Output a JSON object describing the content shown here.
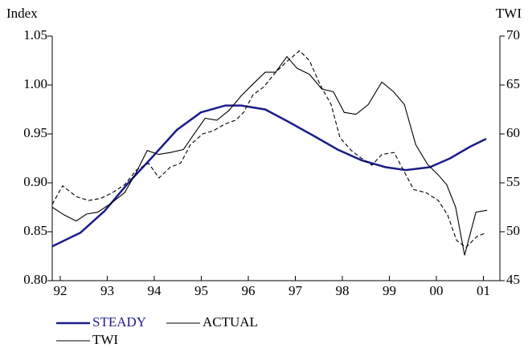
{
  "chart_data": {
    "type": "line",
    "y_label": "Index",
    "y2_label": "TWI",
    "xlim": [
      1991.83,
      2001.35
    ],
    "xticks": [
      {
        "value": 1992,
        "label": "92"
      },
      {
        "value": 1993,
        "label": "93"
      },
      {
        "value": 1994,
        "label": "94"
      },
      {
        "value": 1995,
        "label": "95"
      },
      {
        "value": 1996,
        "label": "96"
      },
      {
        "value": 1997,
        "label": "97"
      },
      {
        "value": 1998,
        "label": "98"
      },
      {
        "value": 1999,
        "label": "99"
      },
      {
        "value": 2000,
        "label": "00"
      },
      {
        "value": 2001,
        "label": "01"
      }
    ],
    "ylim": [
      0.8,
      1.05
    ],
    "yticks": [
      {
        "value": 0.8,
        "label": "0.80"
      },
      {
        "value": 0.85,
        "label": "0.85"
      },
      {
        "value": 0.9,
        "label": "0.90"
      },
      {
        "value": 0.95,
        "label": "0.95"
      },
      {
        "value": 1.0,
        "label": "1.00"
      },
      {
        "value": 1.05,
        "label": "1.05"
      }
    ],
    "y2lim": [
      45,
      70
    ],
    "y2ticks": [
      45,
      50,
      55,
      60,
      65,
      70
    ],
    "series": [
      {
        "name": "STEADY",
        "color": "#1c1c8c",
        "dash": false,
        "x": [
          1991.83,
          1992.43,
          1992.94,
          1993.45,
          1993.97,
          1994.48,
          1994.99,
          1995.51,
          1995.85,
          1996.36,
          1996.87,
          1997.39,
          1997.9,
          1998.41,
          1998.92,
          1999.35,
          1999.86,
          2000.29,
          2000.72,
          2001.06
        ],
        "values": [
          0.835,
          0.849,
          0.871,
          0.9,
          0.927,
          0.954,
          0.972,
          0.979,
          0.979,
          0.975,
          0.962,
          0.948,
          0.934,
          0.923,
          0.916,
          0.913,
          0.916,
          0.925,
          0.937,
          0.945
        ]
      },
      {
        "name": "ACTUAL",
        "color": "#000000",
        "dash": true,
        "x": [
          1991.83,
          1992.05,
          1992.34,
          1992.6,
          1992.86,
          1993.11,
          1993.37,
          1993.62,
          1993.88,
          1994.1,
          1994.34,
          1994.56,
          1994.77,
          1995.03,
          1995.25,
          1995.5,
          1995.73,
          1995.9,
          1996.1,
          1996.33,
          1996.58,
          1996.82,
          1997.09,
          1997.3,
          1997.52,
          1997.76,
          1997.95,
          1998.19,
          1998.41,
          1998.63,
          1998.84,
          1999.1,
          1999.32,
          1999.52,
          1999.78,
          2000.04,
          2000.24,
          2000.43,
          2000.63,
          2000.86,
          2001.06
        ],
        "values": [
          0.878,
          0.897,
          0.886,
          0.882,
          0.884,
          0.89,
          0.898,
          0.913,
          0.92,
          0.905,
          0.916,
          0.92,
          0.939,
          0.95,
          0.953,
          0.96,
          0.964,
          0.972,
          0.99,
          0.998,
          1.013,
          1.024,
          1.035,
          1.025,
          1.001,
          0.98,
          0.946,
          0.933,
          0.925,
          0.918,
          0.929,
          0.931,
          0.911,
          0.893,
          0.89,
          0.882,
          0.867,
          0.841,
          0.834,
          0.845,
          0.849
        ]
      },
      {
        "name": "TWI",
        "color": "#000000",
        "dash": false,
        "axis": "y2",
        "x": [
          1991.83,
          1992.09,
          1992.34,
          1992.56,
          1992.8,
          1993.08,
          1993.37,
          1993.62,
          1993.85,
          1994.09,
          1994.34,
          1994.62,
          1994.82,
          1995.08,
          1995.33,
          1995.59,
          1995.85,
          1996.1,
          1996.36,
          1996.58,
          1996.82,
          1997.04,
          1997.3,
          1997.56,
          1997.81,
          1998.04,
          1998.29,
          1998.55,
          1998.84,
          1999.09,
          1999.32,
          1999.56,
          1999.81,
          2000.04,
          2000.22,
          2000.41,
          2000.6,
          2000.84,
          2001.08
        ],
        "values": [
          52.5,
          51.7,
          51.1,
          51.8,
          52.0,
          52.9,
          54.0,
          56.1,
          58.3,
          57.9,
          58.1,
          58.4,
          59.8,
          61.6,
          61.4,
          62.4,
          63.9,
          65.1,
          66.3,
          66.3,
          67.9,
          66.7,
          66.1,
          64.6,
          64.3,
          62.2,
          62.0,
          63.0,
          65.3,
          64.3,
          63.0,
          58.9,
          56.9,
          55.8,
          54.8,
          52.5,
          47.6,
          52.0,
          52.2
        ]
      }
    ]
  }
}
